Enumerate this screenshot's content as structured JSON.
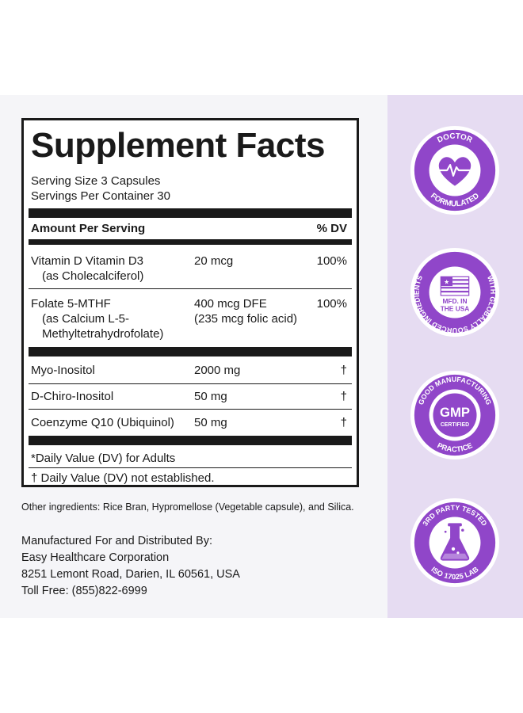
{
  "facts": {
    "title": "Supplement Facts",
    "serving_size": "Serving Size 3 Capsules",
    "servings_per_container": "Servings Per Container 30",
    "amount_header": "Amount Per Serving",
    "dv_header": "% DV",
    "nutrients": [
      {
        "name_line1": "Vitamin D Vitamin D3",
        "name_line2": "(as Cholecalciferol)",
        "amount": "20 mcg",
        "dv": "100%"
      },
      {
        "name_line1": "Folate 5-MTHF",
        "name_line2": "(as Calcium L-5-",
        "name_line3": "Methyltetrahydrofolate)",
        "amount_line1": "400 mcg DFE",
        "amount_line2": "(235 mcg folic acid)",
        "dv": "100%"
      },
      {
        "name": "Myo-Inositol",
        "amount": "2000 mg",
        "dv": "†"
      },
      {
        "name": "D-Chiro-Inositol",
        "amount": "50 mg",
        "dv": "†"
      },
      {
        "name": "Coenzyme Q10 (Ubiquinol)",
        "amount": "50 mg",
        "dv": "†"
      }
    ],
    "footnote_1": "*Daily Value (DV) for Adults",
    "footnote_2": "† Daily Value (DV) not established."
  },
  "other_ingredients": "Other ingredients: Rice Bran, Hypromellose (Vegetable capsule), and Silica.",
  "distributor": {
    "heading": "Manufactured For and Distributed By:",
    "company": "Easy Healthcare Corporation",
    "address": "8251 Lemont Road, Darien, IL 60561, USA",
    "phone": "Toll Free: (855)822-6999"
  },
  "badges": {
    "doctor": {
      "top": "DOCTOR",
      "bottom": "FORMULATED",
      "icon": "heart-pulse-icon"
    },
    "globally": {
      "arc": "WITH GLOBALLY SOURCED INGREDIENTS",
      "center_line1": "MFD. IN",
      "center_line2": "THE USA",
      "icon": "us-flag-icon"
    },
    "gmp": {
      "arc_top": "GOOD MANUFACTURING",
      "arc_bottom": "PRACTICE",
      "logo": "GMP",
      "certified": "CERTIFIED"
    },
    "tested": {
      "arc_top": "3RD PARTY TESTED",
      "arc_bottom": "ISO 17025 LAB",
      "icon": "flask-icon"
    }
  },
  "colors": {
    "accent_purple": "#9046c9",
    "panel_lavender": "#e6dcf2",
    "ink": "#1a1a1a"
  }
}
